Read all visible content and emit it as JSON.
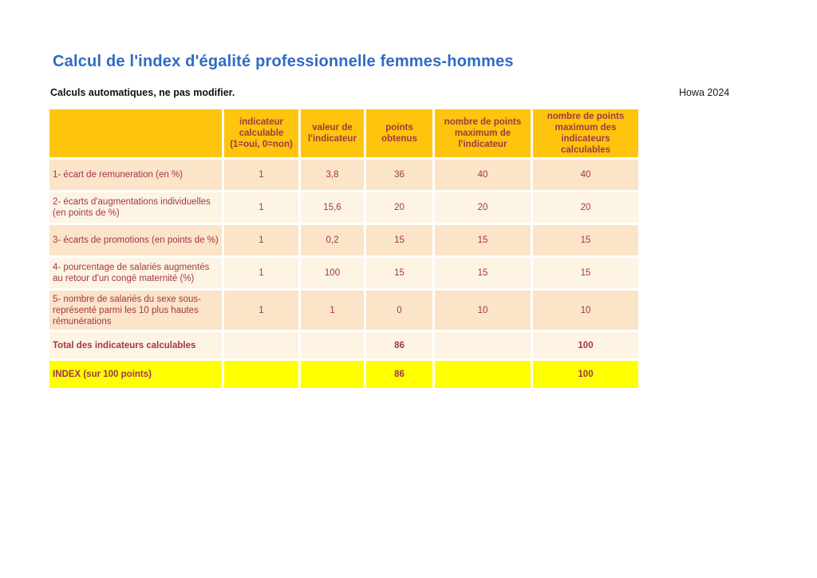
{
  "page": {
    "title": "Calcul de l'index d'égalité professionnelle femmes-hommes",
    "subtitle": "Calculs automatiques, ne pas modifier.",
    "company_year": "Howa 2024"
  },
  "colors": {
    "title_blue": "#2F6BC4",
    "header_gold": "#FFC40D",
    "row_peach": "#FBE4C8",
    "row_cream": "#FEF4E4",
    "index_yellow": "#FFFF00",
    "text_maroon": "#A2364A"
  },
  "table": {
    "headers": [
      "",
      "indicateur calculable (1=oui, 0=non)",
      "valeur de l'indicateur",
      "points obtenus",
      "nombre de points maximum de l'indicateur",
      "nombre de points maximum des indicateurs calculables"
    ],
    "rows": [
      {
        "label": "1- écart de remuneration (en %)",
        "calculable": "1",
        "valeur": "3,8",
        "points": "36",
        "max_indicateur": "40",
        "max_calculables": "40"
      },
      {
        "label": "2- écarts d'augmentations individuelles (en points de %)",
        "calculable": "1",
        "valeur": "15,6",
        "points": "20",
        "max_indicateur": "20",
        "max_calculables": "20"
      },
      {
        "label": "3- écarts de promotions (en points de %)",
        "calculable": "1",
        "valeur": "0,2",
        "points": "15",
        "max_indicateur": "15",
        "max_calculables": "15"
      },
      {
        "label": "4- pourcentage de salariés augmentés au retour d'un congé maternité (%)",
        "calculable": "1",
        "valeur": "100",
        "points": "15",
        "max_indicateur": "15",
        "max_calculables": "15"
      },
      {
        "label": "5- nombre de salariés du sexe sous-représenté parmi les 10 plus hautes rémunérations",
        "calculable": "1",
        "valeur": "1",
        "points": "0",
        "max_indicateur": "10",
        "max_calculables": "10"
      }
    ],
    "total_row": {
      "label": "Total des indicateurs calculables",
      "points": "86",
      "max_calculables": "100"
    },
    "index_row": {
      "label": "INDEX (sur 100 points)",
      "points": "86",
      "max_calculables": "100"
    }
  }
}
